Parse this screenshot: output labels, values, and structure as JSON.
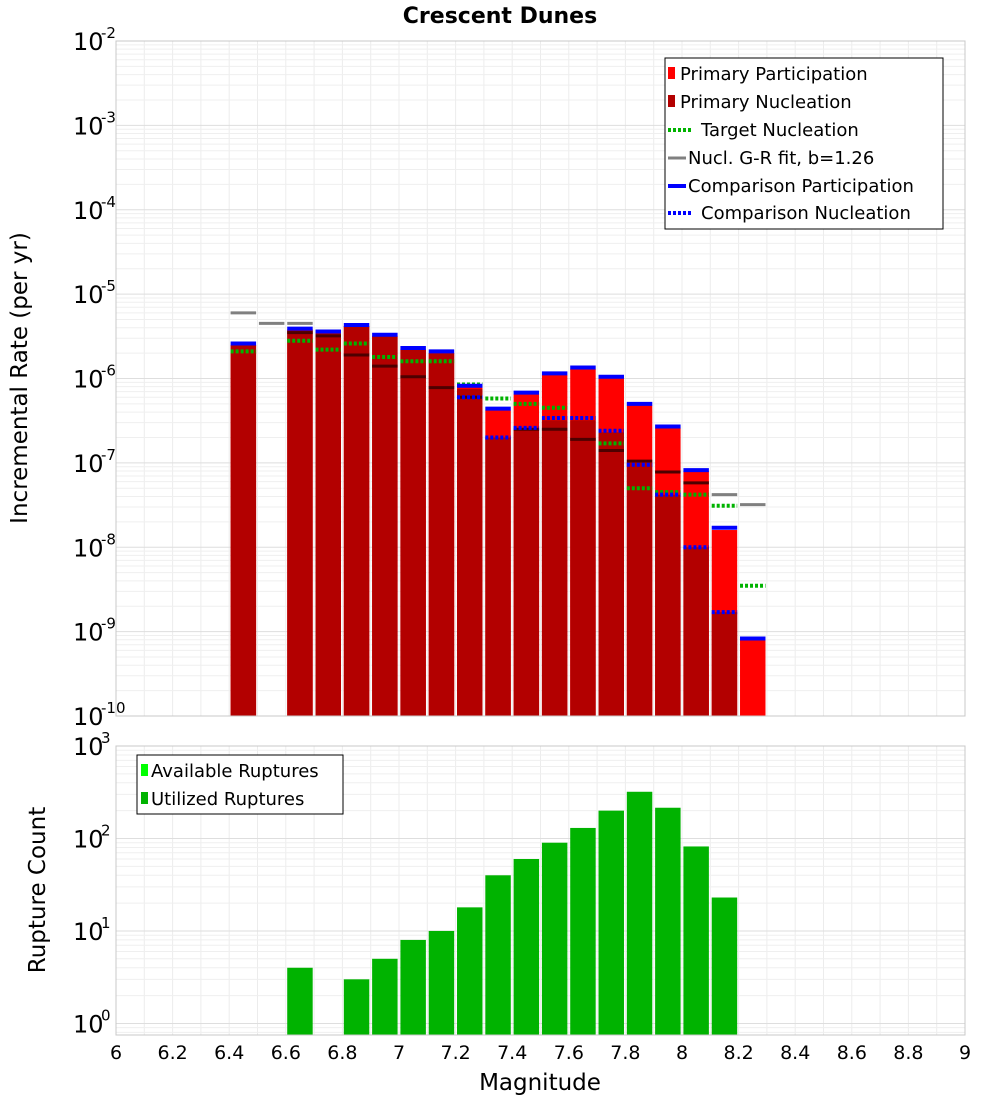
{
  "chart_data": [
    {
      "type": "bar",
      "title": "Crescent Dunes",
      "xlabel": "",
      "ylabel": "Incremental Rate (per yr)",
      "xlim": [
        6,
        9
      ],
      "ylim": [
        1e-10,
        0.01
      ],
      "yscale": "log",
      "grid": true,
      "legend_position": "top-right",
      "x": [
        6.45,
        6.65,
        6.75,
        6.85,
        6.95,
        7.05,
        7.15,
        7.25,
        7.35,
        7.45,
        7.55,
        7.65,
        7.75,
        7.85,
        7.95,
        8.05,
        8.15,
        8.25
      ],
      "series": [
        {
          "name": "Primary Participation",
          "style": "bar",
          "color": "#ff0000",
          "values": [
            2.5e-06,
            3.8e-06,
            3.5e-06,
            4.2e-06,
            3.2e-06,
            2.2e-06,
            2e-06,
            8e-07,
            4.2e-07,
            6.5e-07,
            1.1e-06,
            1.3e-06,
            1e-06,
            4.8e-07,
            2.6e-07,
            8e-08,
            1.6e-08,
            8e-10
          ]
        },
        {
          "name": "Primary Nucleation",
          "style": "bar",
          "color": "#b30000",
          "values": [
            2.5e-06,
            3.8e-06,
            3.5e-06,
            4.2e-06,
            3.2e-06,
            2.2e-06,
            2e-06,
            7.5e-07,
            2e-07,
            2.5e-07,
            3.2e-07,
            3.2e-07,
            2.3e-07,
            1e-07,
            4.2e-08,
            1e-08,
            1.7e-09,
            0
          ]
        },
        {
          "name": "",
          "style": "tick",
          "color": "#4d0000",
          "values": [
            null,
            3.5e-06,
            3.2e-06,
            1.9e-06,
            1.4e-06,
            1.05e-06,
            7.8e-07,
            6e-07,
            null,
            2.5e-07,
            2.5e-07,
            1.9e-07,
            1.4e-07,
            1.05e-07,
            7.8e-08,
            5.8e-08,
            null,
            null
          ]
        },
        {
          "name": "Target Nucleation",
          "style": "dotted",
          "color": "#00b300",
          "values": [
            2.1e-06,
            2.8e-06,
            2.2e-06,
            2.6e-06,
            1.8e-06,
            1.6e-06,
            1.6e-06,
            8.5e-07,
            5.8e-07,
            5e-07,
            4.5e-07,
            null,
            1.7e-07,
            5e-08,
            4.5e-08,
            4.2e-08,
            3.1e-08,
            3.5e-09
          ]
        },
        {
          "name": "Nucl. G-R fit, b=1.26",
          "style": "solid",
          "color": "#808080",
          "values": [
            6e-06,
            4.5e-06,
            null,
            null,
            null,
            null,
            null,
            null,
            null,
            null,
            null,
            null,
            null,
            null,
            null,
            null,
            4.2e-08,
            3.2e-08
          ],
          "extra_x": 6.55,
          "extra_value": 4.5e-06
        },
        {
          "name": "Comparison Participation",
          "style": "solid",
          "color": "#0000ff",
          "values": [
            2.6e-06,
            3.9e-06,
            3.6e-06,
            4.3e-06,
            3.3e-06,
            2.3e-06,
            2.1e-06,
            8.2e-07,
            4.4e-07,
            6.8e-07,
            1.15e-06,
            1.35e-06,
            1.05e-06,
            5e-07,
            2.7e-07,
            8.2e-08,
            1.7e-08,
            8.3e-10
          ]
        },
        {
          "name": "Comparison Nucleation",
          "style": "dotted",
          "color": "#0000ff",
          "values": [
            null,
            null,
            null,
            null,
            null,
            null,
            null,
            6e-07,
            2e-07,
            2.6e-07,
            3.4e-07,
            3.4e-07,
            2.4e-07,
            9.5e-08,
            4.2e-08,
            1e-08,
            1.7e-09,
            null
          ]
        }
      ]
    },
    {
      "type": "bar",
      "title": "",
      "xlabel": "Magnitude",
      "ylabel": "Rupture Count",
      "xlim": [
        6,
        9
      ],
      "ylim": [
        0.75,
        1000
      ],
      "yscale": "log",
      "grid": true,
      "legend_position": "top-left",
      "x": [
        6.65,
        6.85,
        6.95,
        7.05,
        7.15,
        7.25,
        7.35,
        7.45,
        7.55,
        7.65,
        7.75,
        7.85,
        7.95,
        8.05,
        8.15
      ],
      "series": [
        {
          "name": "Available Ruptures",
          "style": "bar",
          "color": "#00ff00",
          "values": [
            4,
            3,
            5,
            8,
            10,
            18,
            40,
            60,
            90,
            130,
            200,
            320,
            215,
            82,
            23
          ]
        },
        {
          "name": "Utilized Ruptures",
          "style": "bar",
          "color": "#00b300",
          "values": [
            4,
            3,
            5,
            8,
            10,
            18,
            40,
            60,
            90,
            130,
            200,
            320,
            215,
            82,
            23
          ]
        }
      ]
    }
  ],
  "x_ticks": [
    "6",
    "6.2",
    "6.4",
    "6.6",
    "6.8",
    "7",
    "7.2",
    "7.4",
    "7.6",
    "7.8",
    "8",
    "8.2",
    "8.4",
    "8.6",
    "8.8",
    "9"
  ],
  "top_y_ticks": [
    {
      "base": "10",
      "exp": "-2"
    },
    {
      "base": "10",
      "exp": "-3"
    },
    {
      "base": "10",
      "exp": "-4"
    },
    {
      "base": "10",
      "exp": "-5"
    },
    {
      "base": "10",
      "exp": "-6"
    },
    {
      "base": "10",
      "exp": "-7"
    },
    {
      "base": "10",
      "exp": "-8"
    },
    {
      "base": "10",
      "exp": "-9"
    },
    {
      "base": "10",
      "exp": "-10"
    }
  ],
  "bottom_y_ticks": [
    {
      "base": "10",
      "exp": "3"
    },
    {
      "base": "10",
      "exp": "2"
    },
    {
      "base": "10",
      "exp": "1"
    },
    {
      "base": "10",
      "exp": "0"
    }
  ]
}
